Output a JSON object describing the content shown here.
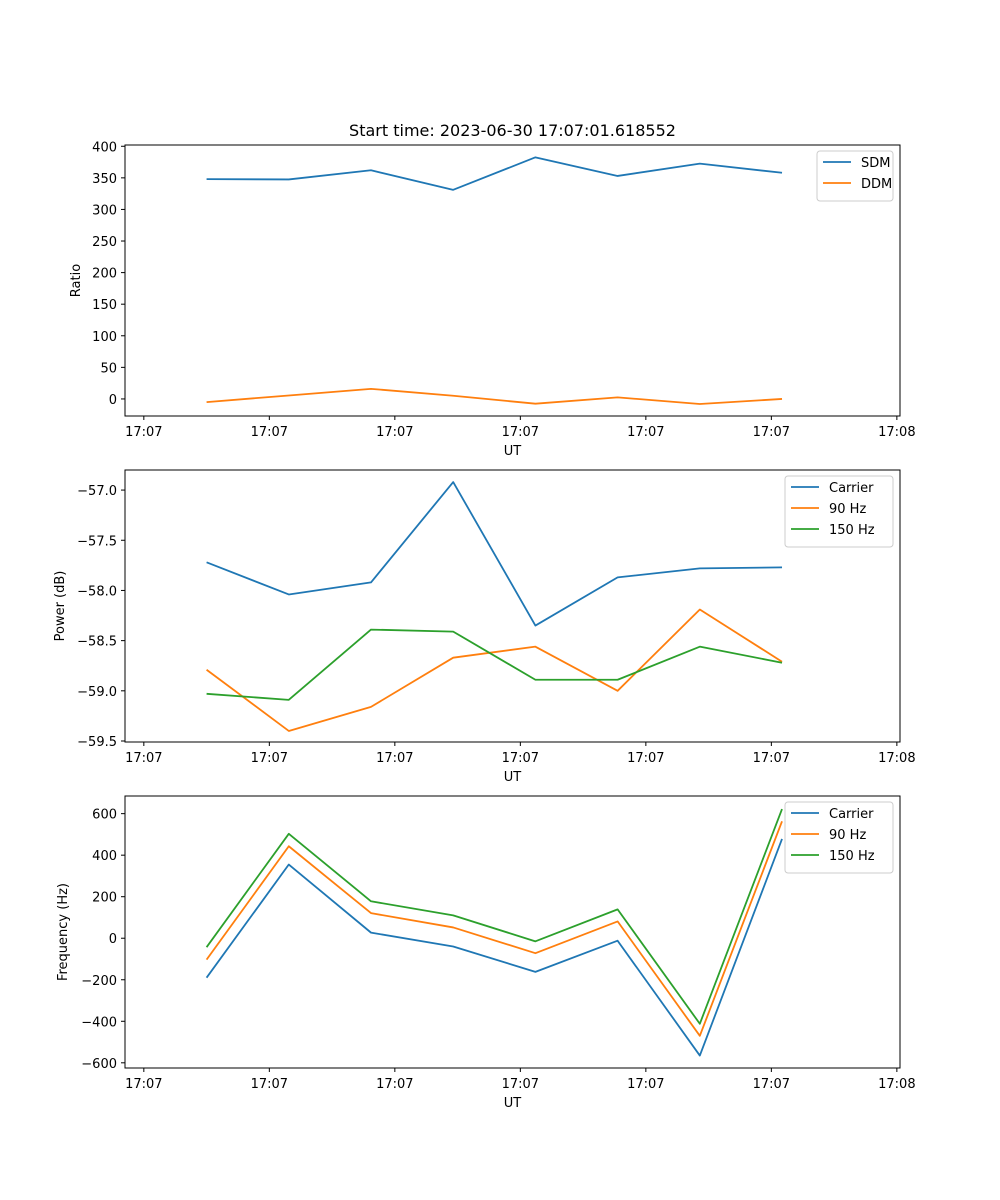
{
  "figure": {
    "title": "Start time: 2023-06-30 17:07:01.618552"
  },
  "chart_data": [
    {
      "type": "line",
      "xlabel": "UT",
      "ylabel": "Ratio",
      "x_tick_labels": [
        "17:07",
        "17:07",
        "17:07",
        "17:07",
        "17:07",
        "17:07",
        "17:08"
      ],
      "x_ticks": [
        -0.75,
        1.25,
        3.25,
        5.25,
        7.25,
        9.25,
        11.25
      ],
      "xlim": [
        -1.05,
        11.3
      ],
      "x": [
        0.25,
        1.56,
        2.87,
        4.18,
        5.49,
        6.8,
        8.11,
        9.42
      ],
      "ylim": [
        -27,
        402
      ],
      "y_ticks": [
        0,
        50,
        100,
        150,
        200,
        250,
        300,
        350,
        400
      ],
      "legend_position": "upper right",
      "series": [
        {
          "name": "SDM",
          "color": "#1f77b4",
          "values": [
            348,
            347.5,
            362,
            331,
            382.5,
            353,
            372.5,
            358
          ]
        },
        {
          "name": "DDM",
          "color": "#ff7f0e",
          "values": [
            -5,
            5.5,
            16,
            5,
            -7.5,
            2.5,
            -8,
            0
          ]
        }
      ]
    },
    {
      "type": "line",
      "xlabel": "UT",
      "ylabel": "Power (dB)",
      "x_tick_labels": [
        "17:07",
        "17:07",
        "17:07",
        "17:07",
        "17:07",
        "17:07",
        "17:08"
      ],
      "x_ticks": [
        -0.75,
        1.25,
        3.25,
        5.25,
        7.25,
        9.25,
        11.25
      ],
      "xlim": [
        -1.05,
        11.3
      ],
      "x": [
        0.25,
        1.56,
        2.87,
        4.18,
        5.49,
        6.8,
        8.11,
        9.42
      ],
      "ylim": [
        -59.51,
        -56.8
      ],
      "y_ticks": [
        -59.5,
        -59.0,
        -58.5,
        -58.0,
        -57.5,
        -57.0
      ],
      "y_tick_labels": [
        "−59.5",
        "−59.0",
        "−58.5",
        "−58.0",
        "−57.5",
        "−57.0"
      ],
      "legend_position": "upper right",
      "series": [
        {
          "name": "Carrier",
          "color": "#1f77b4",
          "values": [
            -57.72,
            -58.04,
            -57.92,
            -56.92,
            -58.35,
            -57.87,
            -57.78,
            -57.77
          ]
        },
        {
          "name": "90 Hz",
          "color": "#ff7f0e",
          "values": [
            -58.79,
            -59.4,
            -59.16,
            -58.67,
            -58.56,
            -59.0,
            -58.19,
            -58.71
          ]
        },
        {
          "name": "150 Hz",
          "color": "#2ca02c",
          "values": [
            -59.03,
            -59.09,
            -58.39,
            -58.41,
            -58.89,
            -58.89,
            -58.56,
            -58.72
          ]
        }
      ]
    },
    {
      "type": "line",
      "xlabel": "UT",
      "ylabel": "Frequency (Hz)",
      "x_tick_labels": [
        "17:07",
        "17:07",
        "17:07",
        "17:07",
        "17:07",
        "17:07",
        "17:08"
      ],
      "x_ticks": [
        -0.75,
        1.25,
        3.25,
        5.25,
        7.25,
        9.25,
        11.25
      ],
      "xlim": [
        -1.05,
        11.3
      ],
      "x": [
        0.25,
        1.56,
        2.87,
        4.18,
        5.49,
        6.8,
        8.11,
        9.42
      ],
      "ylim": [
        -625,
        685
      ],
      "y_ticks": [
        -600,
        -400,
        -200,
        0,
        200,
        400,
        600
      ],
      "y_tick_labels": [
        "−600",
        "−400",
        "−200",
        "0",
        "200",
        "400",
        "600"
      ],
      "legend_position": "upper right",
      "series": [
        {
          "name": "Carrier",
          "color": "#1f77b4",
          "values": [
            -190,
            355,
            27,
            -40,
            -162,
            -12,
            -565,
            478
          ]
        },
        {
          "name": "90 Hz",
          "color": "#ff7f0e",
          "values": [
            -103,
            443,
            121,
            52,
            -72,
            81,
            -470,
            563
          ]
        },
        {
          "name": "150 Hz",
          "color": "#2ca02c",
          "values": [
            -43,
            503,
            178,
            110,
            -15,
            139,
            -412,
            622
          ]
        }
      ]
    }
  ]
}
